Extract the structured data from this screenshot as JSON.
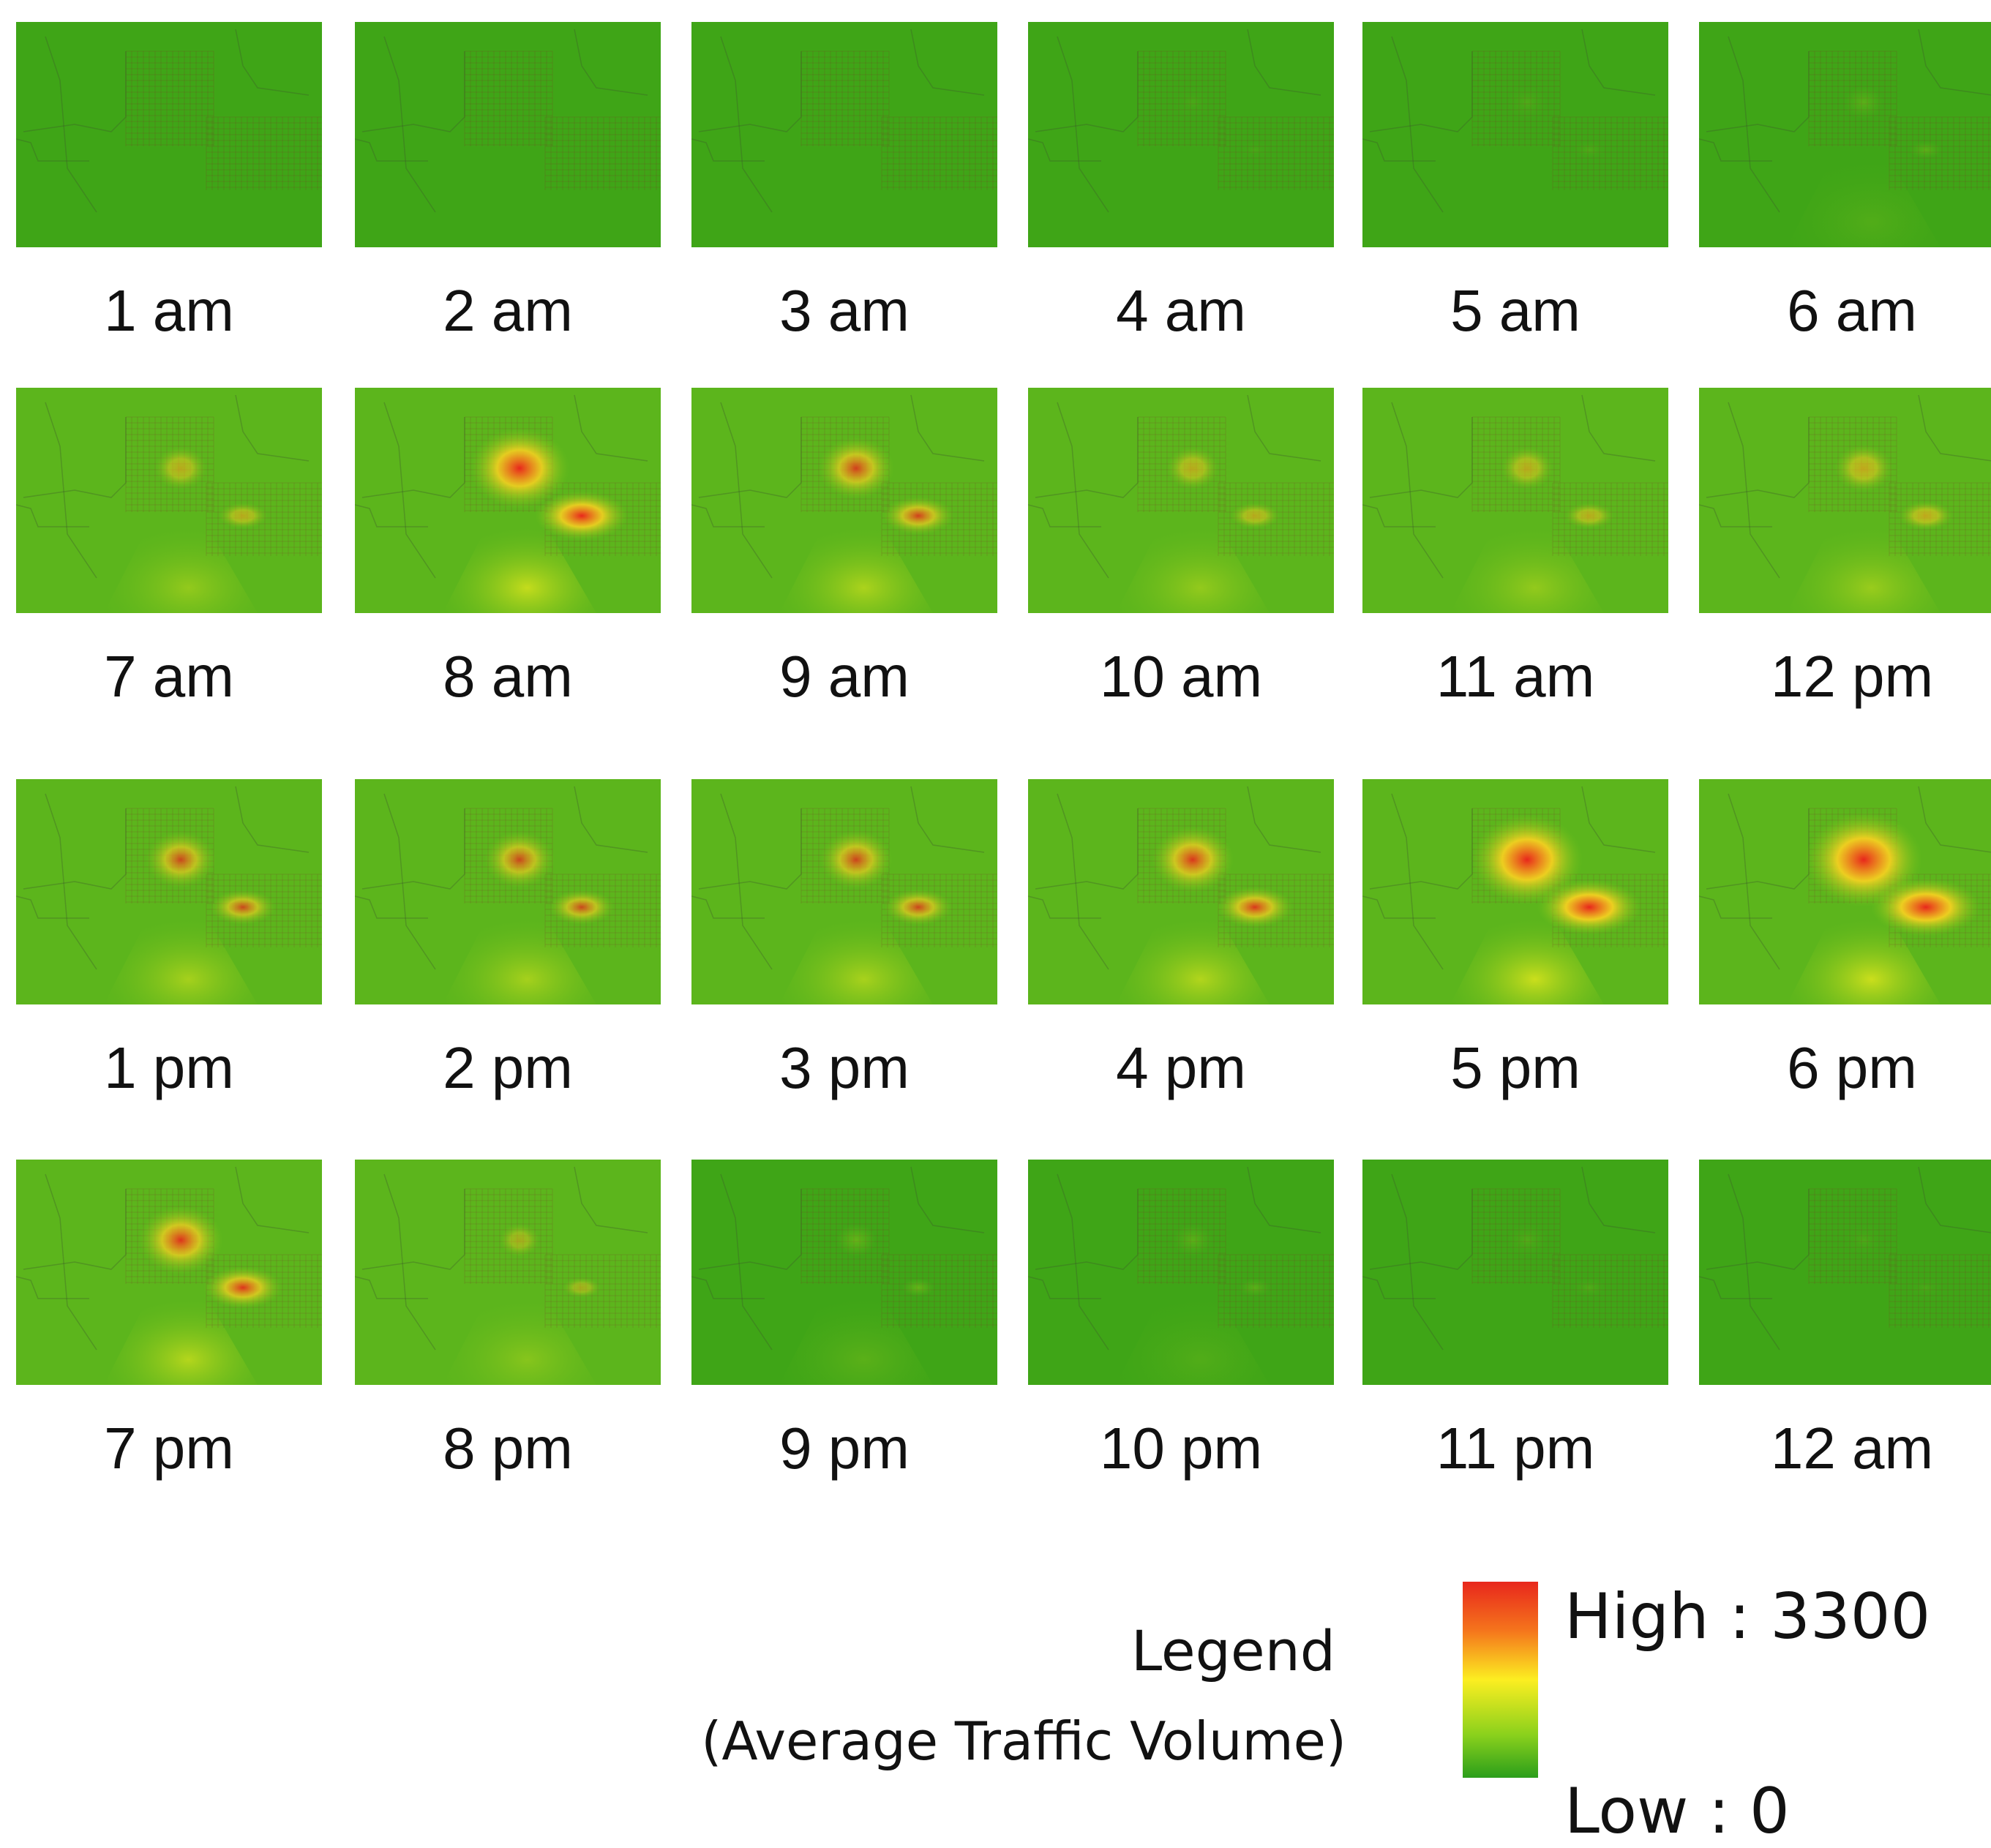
{
  "panels": [
    {
      "label": "1 am",
      "intensity": 0.0
    },
    {
      "label": "2 am",
      "intensity": 0.0
    },
    {
      "label": "3 am",
      "intensity": 0.0
    },
    {
      "label": "4 am",
      "intensity": 0.02
    },
    {
      "label": "5 am",
      "intensity": 0.05
    },
    {
      "label": "6 am",
      "intensity": 0.12
    },
    {
      "label": "7 am",
      "intensity": 0.45
    },
    {
      "label": "8 am",
      "intensity": 0.85
    },
    {
      "label": "9 am",
      "intensity": 0.65
    },
    {
      "label": "10 am",
      "intensity": 0.45
    },
    {
      "label": "11 am",
      "intensity": 0.45
    },
    {
      "label": "12 pm",
      "intensity": 0.5
    },
    {
      "label": "1 pm",
      "intensity": 0.6
    },
    {
      "label": "2 pm",
      "intensity": 0.6
    },
    {
      "label": "3 pm",
      "intensity": 0.62
    },
    {
      "label": "4 pm",
      "intensity": 0.7
    },
    {
      "label": "5 pm",
      "intensity": 0.95
    },
    {
      "label": "6 pm",
      "intensity": 1.0
    },
    {
      "label": "7 pm",
      "intensity": 0.72
    },
    {
      "label": "8 pm",
      "intensity": 0.35
    },
    {
      "label": "9 pm",
      "intensity": 0.18
    },
    {
      "label": "10 pm",
      "intensity": 0.12
    },
    {
      "label": "11 pm",
      "intensity": 0.06
    },
    {
      "label": "12 am",
      "intensity": 0.03
    }
  ],
  "legend": {
    "title": "Legend",
    "subtitle": "(Average Traffic Volume)",
    "high": "High : 3300",
    "low": "Low : 0",
    "colors": [
      "#e8271c",
      "#f5751c",
      "#fcee21",
      "#8bd11c",
      "#2b9e1b"
    ]
  }
}
